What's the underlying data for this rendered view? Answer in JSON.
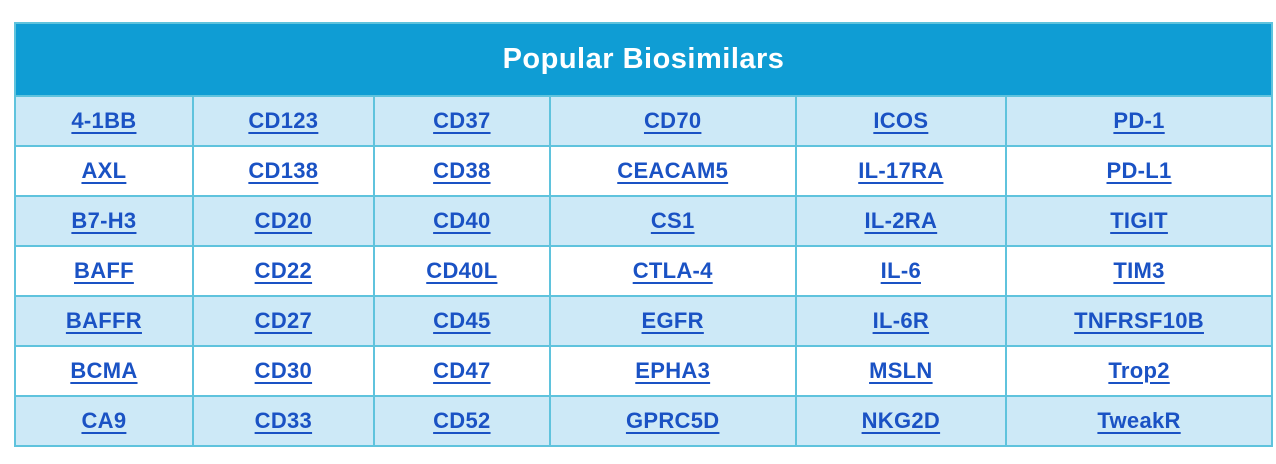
{
  "table": {
    "title": "Popular Biosimilars",
    "rows": [
      [
        "4-1BB",
        "CD123",
        "CD37",
        "CD70",
        "ICOS",
        "PD-1"
      ],
      [
        "AXL",
        "CD138",
        "CD38",
        "CEACAM5",
        "IL-17RA",
        "PD-L1"
      ],
      [
        "B7-H3",
        "CD20",
        "CD40",
        "CS1",
        "IL-2RA",
        "TIGIT"
      ],
      [
        "BAFF",
        "CD22",
        "CD40L",
        "CTLA-4",
        "IL-6",
        "TIM3"
      ],
      [
        "BAFFR",
        "CD27",
        "CD45",
        "EGFR",
        "IL-6R",
        "TNFRSF10B"
      ],
      [
        "BCMA",
        "CD30",
        "CD47",
        "EPHA3",
        "MSLN",
        "Trop2"
      ],
      [
        "CA9",
        "CD33",
        "CD52",
        "GPRC5D",
        "NKG2D",
        "TweakR"
      ]
    ]
  },
  "colors": {
    "header_bg": "#0f9dd4",
    "header_text": "#ffffff",
    "row_alt_bg": "#cde9f7",
    "row_bg": "#ffffff",
    "cell_border": "#5fc3dd",
    "link": "#1a52c4"
  }
}
